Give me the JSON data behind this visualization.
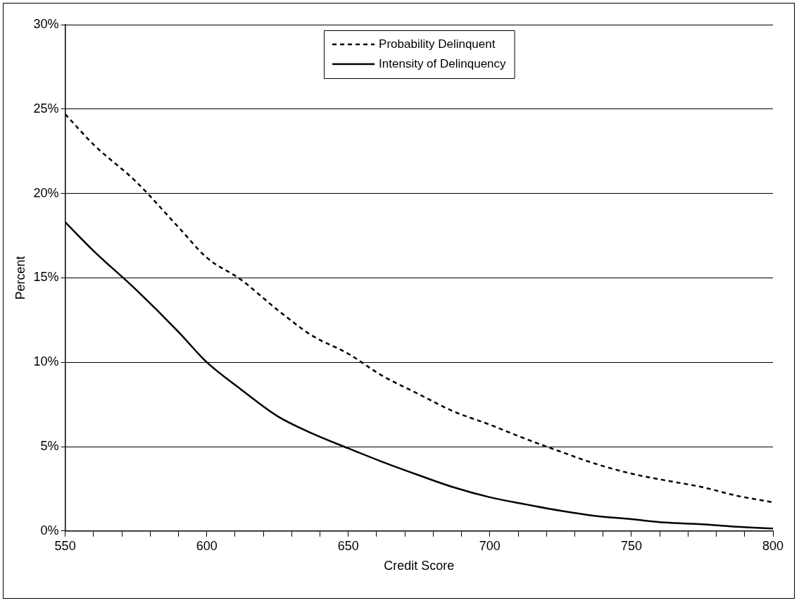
{
  "chart_data": {
    "type": "line",
    "xlabel": "Credit Score",
    "ylabel": "Percent",
    "x": [
      550,
      560,
      575,
      590,
      600,
      612,
      625,
      637,
      650,
      662,
      675,
      687,
      700,
      712,
      725,
      737,
      750,
      762,
      775,
      787,
      800
    ],
    "series": [
      {
        "name": "Probability Delinquent",
        "color": "#000000",
        "line_style": "dashed",
        "values": [
          24.7,
          22.9,
          20.7,
          18.0,
          16.2,
          14.9,
          13.1,
          11.6,
          10.5,
          9.2,
          8.1,
          7.1,
          6.3,
          5.5,
          4.7,
          4.0,
          3.4,
          3.0,
          2.6,
          2.1,
          1.7
        ]
      },
      {
        "name": "Intensity of Delinquency",
        "color": "#000000",
        "line_style": "solid",
        "values": [
          18.3,
          16.6,
          14.3,
          11.8,
          10.0,
          8.4,
          6.8,
          5.8,
          4.9,
          4.1,
          3.3,
          2.6,
          2.0,
          1.6,
          1.2,
          0.9,
          0.7,
          0.5,
          0.4,
          0.25,
          0.15
        ]
      }
    ],
    "xlim": [
      550,
      800
    ],
    "xticks": [
      550,
      {
        "value": 560,
        "label": null
      },
      {
        "value": 570,
        "label": null
      },
      {
        "value": 580,
        "label": null
      },
      {
        "value": 590,
        "label": null
      },
      600,
      {
        "value": 610,
        "label": null
      },
      {
        "value": 620,
        "label": null
      },
      {
        "value": 630,
        "label": null
      },
      {
        "value": 640,
        "label": null
      },
      650,
      {
        "value": 660,
        "label": null
      },
      {
        "value": 670,
        "label": null
      },
      {
        "value": 680,
        "label": null
      },
      {
        "value": 690,
        "label": null
      },
      700,
      {
        "value": 710,
        "label": null
      },
      {
        "value": 720,
        "label": null
      },
      {
        "value": 730,
        "label": null
      },
      {
        "value": 740,
        "label": null
      },
      750,
      {
        "value": 760,
        "label": null
      },
      {
        "value": 770,
        "label": null
      },
      {
        "value": 780,
        "label": null
      },
      {
        "value": 790,
        "label": null
      },
      800
    ],
    "ylim": [
      0,
      30
    ],
    "yticks": [
      {
        "value": 0,
        "label": "0%"
      },
      {
        "value": 5,
        "label": "5%"
      },
      {
        "value": 10,
        "label": "10%"
      },
      {
        "value": 15,
        "label": "15%"
      },
      {
        "value": 20,
        "label": "20%"
      },
      {
        "value": 25,
        "label": "25%"
      },
      {
        "value": 30,
        "label": "30%"
      }
    ],
    "grid": "y",
    "legend": "top",
    "marker": "none"
  }
}
